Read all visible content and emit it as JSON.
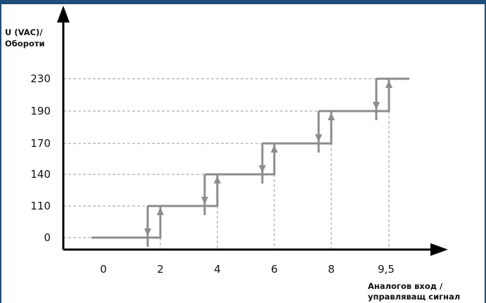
{
  "chart_data": {
    "type": "line",
    "ylabel_lines": [
      "U (VAC)/",
      "Обороти"
    ],
    "xlabel_lines": [
      "Аналогов вход /",
      "управляващ сигнал"
    ],
    "y_ticks": [
      "0",
      "110",
      "140",
      "170",
      "190",
      "230"
    ],
    "x_ticks": [
      "0",
      "2",
      "4",
      "6",
      "8",
      "9,5"
    ],
    "y_levels": [
      0,
      110,
      140,
      170,
      190,
      230
    ],
    "step_x_values": [
      2,
      4,
      6,
      8,
      9.5
    ],
    "hysteresis": {
      "switch_up_x": [
        2,
        4,
        6,
        8,
        9.5
      ],
      "switch_down_x": [
        1.5,
        3.5,
        5.5,
        7.5,
        9.2
      ]
    },
    "grid": "dashed",
    "colors": {
      "step_line": "#8c8c8c",
      "axis": "#000000",
      "grid": "#999999",
      "frame": "#1f4e79"
    }
  }
}
